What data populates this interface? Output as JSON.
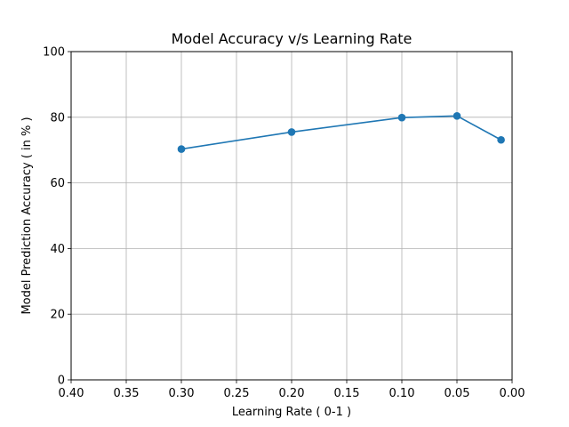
{
  "chart_data": {
    "type": "line",
    "title": "Model Accuracy v/s Learning Rate",
    "xlabel": "Learning Rate ( 0-1 )",
    "ylabel": "Model Prediction Accuracy ( in % )",
    "xlim": [
      0.4,
      0.0
    ],
    "ylim": [
      0,
      100
    ],
    "x_inverted": true,
    "grid": true,
    "xticks": [
      0.4,
      0.35,
      0.3,
      0.25,
      0.2,
      0.15,
      0.1,
      0.05,
      0.0
    ],
    "xtick_labels": [
      "0.40",
      "0.35",
      "0.30",
      "0.25",
      "0.20",
      "0.15",
      "0.10",
      "0.05",
      "0.00"
    ],
    "yticks": [
      0,
      20,
      40,
      60,
      80,
      100
    ],
    "ytick_labels": [
      "0",
      "20",
      "40",
      "60",
      "80",
      "100"
    ],
    "series": [
      {
        "x": [
          0.3,
          0.2,
          0.1,
          0.05,
          0.01
        ],
        "y": [
          70.3,
          75.5,
          79.9,
          80.4,
          73.1
        ],
        "color": "#1f77b4",
        "marker": "circle"
      }
    ]
  }
}
